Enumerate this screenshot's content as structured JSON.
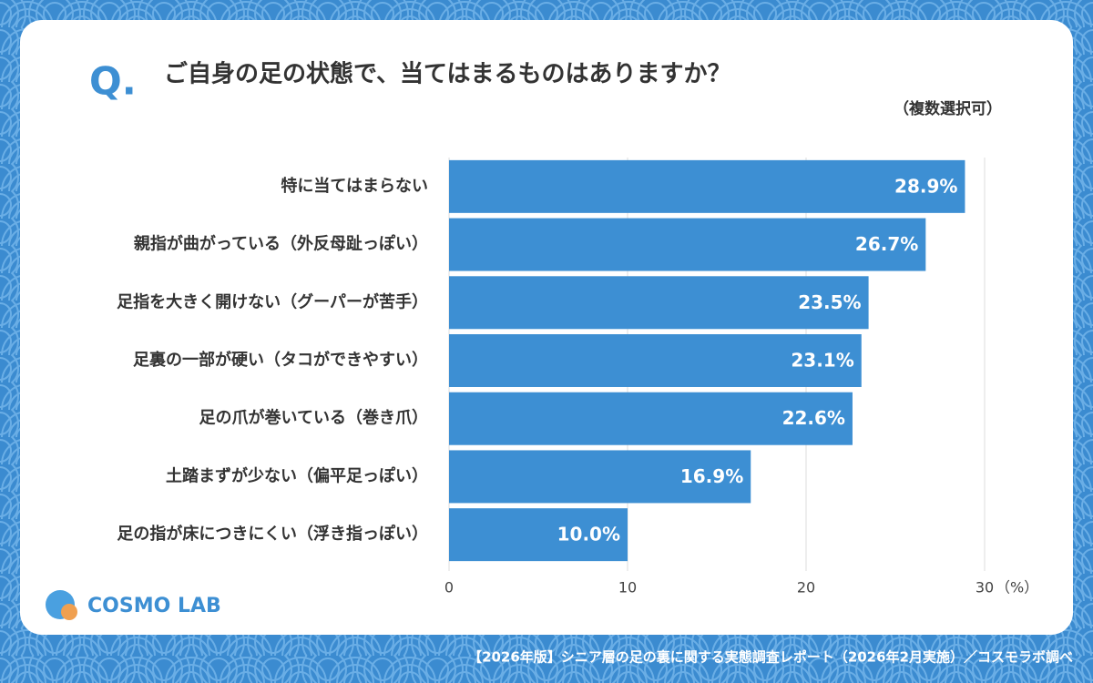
{
  "chart_data": {
    "type": "bar",
    "orientation": "horizontal",
    "title": "ご自身の足の状態で、当てはまるものはありますか？",
    "title_prefix": "Q.",
    "subtitle": "（複数選択可）",
    "categories": [
      "特に当てはまらない",
      "親指が曲がっている（外反母趾っぽい）",
      "足指を大きく開けない（グーパーが苦手）",
      "足裏の一部が硬い（タコができやすい）",
      "足の爪が巻いている（巻き爪）",
      "土踏まずが少ない（偏平足っぽい）",
      "足の指が床につきにくい（浮き指っぽい）"
    ],
    "values": [
      28.9,
      26.7,
      23.5,
      23.1,
      22.6,
      16.9,
      10.0
    ],
    "value_labels": [
      "28.9%",
      "26.7%",
      "23.5%",
      "23.1%",
      "22.6%",
      "16.9%",
      "10.0%"
    ],
    "color": "#3d8fd3",
    "xlim": [
      0,
      30
    ],
    "xticks": [
      0,
      10,
      20,
      30
    ],
    "xlabel": "（%）",
    "grid": true,
    "logo": "COSMO LAB",
    "source": "【2026年版】シニア層の足の裏に関する実態調査レポート（2026年2月実施）／コスモラボ調べ"
  }
}
